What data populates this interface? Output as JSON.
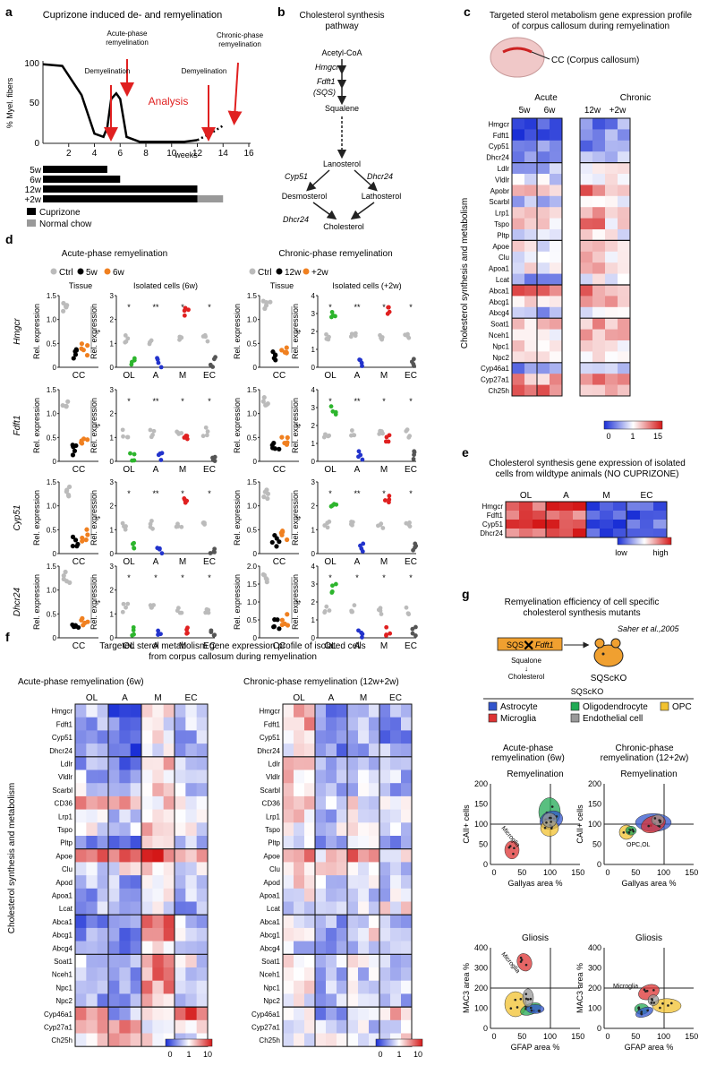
{
  "colors": {
    "cuprizone": "#000000",
    "normal_chow": "#999999",
    "arrow_red": "#e02020",
    "astrocyte": "#3355cc",
    "oligodendrocyte": "#22aa55",
    "opc": "#f2c230",
    "microglia": "#dd3333",
    "endothelial": "#999999",
    "ctrl": "#bbbbbb",
    "w5": "#000000",
    "w6": "#f08020",
    "oligo_green": "#2db52d",
    "astro_blue": "#2233cc",
    "micro_red": "#e02020"
  },
  "panel_a": {
    "letter": "a",
    "title": "Cuprizone induced de- and remyelination",
    "ylabel": "% Myel. fibers",
    "yticks": [
      "100",
      "50",
      "0"
    ],
    "xticks": [
      "2",
      "4",
      "6",
      "8",
      "10",
      "12",
      "14",
      "16"
    ],
    "xlabel": "weeks",
    "labels": {
      "demyel1": "Demyelination",
      "acute": "Acute-phase remyelination",
      "demyel2": "Demyelination",
      "chronic": "Chronic-phase remyelination",
      "analysis": "Analysis"
    },
    "bars": [
      {
        "label": "5w",
        "weeks": 5
      },
      {
        "label": "6w",
        "weeks": 6
      },
      {
        "label": "12w",
        "weeks": 12
      },
      {
        "label": "+2w",
        "weeks": 12,
        "extra": 2
      }
    ],
    "legend": [
      "Cuprizone",
      "Normal chow"
    ],
    "curve": [
      [
        0,
        98
      ],
      [
        1.5,
        96
      ],
      [
        3,
        60
      ],
      [
        4,
        12
      ],
      [
        4.7,
        8
      ],
      [
        5,
        20
      ],
      [
        5.3,
        55
      ],
      [
        5.7,
        62
      ],
      [
        6,
        55
      ],
      [
        6.5,
        8
      ],
      [
        7.5,
        2
      ],
      [
        9,
        2
      ],
      [
        11,
        2
      ],
      [
        12,
        4
      ],
      [
        13,
        12
      ],
      [
        14,
        22
      ]
    ]
  },
  "panel_b": {
    "letter": "b",
    "title": "Cholesterol synthesis pathway",
    "nodes": {
      "acetyl": "Acetyl-CoA",
      "hmgcr": "Hmgcr",
      "fdft1": "Fdft1",
      "sqs": "(SQS)",
      "squalene": "Squalene",
      "lanosterol": "Lanosterol",
      "cyp51": "Cyp51",
      "dhcr24a": "Dhcr24",
      "desmosterol": "Desmosterol",
      "lathosterol": "Lathosterol",
      "dhcr24b": "Dhcr24",
      "cholesterol": "Cholesterol"
    }
  },
  "panel_c": {
    "letter": "c",
    "title": "Targeted sterol metabolism gene expression profile of corpus callosum during remyelination",
    "brain_label": "CC (Corpus callosum)",
    "acute": "Acute",
    "chronic": "Chronic",
    "cols": [
      "5w",
      "6w",
      "12w",
      "+2w"
    ],
    "ylabel": "Cholesterol synthesis and metabolism",
    "genes": [
      "Hmgcr",
      "Fdft1",
      "Cyp51",
      "Dhcr24",
      "Ldlr",
      "Vldlr",
      "Apobr",
      "Scarbl",
      "Lrp1",
      "Tspo",
      "Pltp",
      "Apoe",
      "Clu",
      "Apoa1",
      "Lcat",
      "Abca1",
      "Abcg1",
      "Abcg4",
      "Soat1",
      "Nceh1",
      "Npc1",
      "Npc2",
      "Cyp46a1",
      "Cyp27a1",
      "Ch25h"
    ],
    "groups": [
      4,
      7,
      4,
      3,
      4,
      3
    ],
    "scale": [
      "0",
      "1",
      "15"
    ],
    "heat": [
      [
        0.1,
        0.15,
        0.2,
        0.25
      ],
      [
        0.1,
        0.1,
        0.25,
        0.3
      ],
      [
        0.15,
        0.2,
        0.2,
        0.35
      ],
      [
        0.2,
        0.15,
        0.3,
        0.4
      ],
      [
        0.35,
        0.3,
        0.45,
        0.5
      ],
      [
        0.45,
        0.4,
        0.55,
        0.6
      ],
      [
        0.7,
        0.6,
        0.8,
        0.7
      ],
      [
        0.35,
        0.3,
        0.5,
        0.45
      ],
      [
        0.55,
        0.5,
        0.7,
        0.6
      ],
      [
        0.7,
        0.6,
        0.75,
        0.55
      ],
      [
        0.45,
        0.5,
        0.6,
        0.5
      ],
      [
        0.55,
        0.5,
        0.7,
        0.6
      ],
      [
        0.4,
        0.45,
        0.6,
        0.55
      ],
      [
        0.5,
        0.45,
        0.65,
        0.5
      ],
      [
        0.25,
        0.3,
        0.45,
        0.4
      ],
      [
        0.9,
        0.8,
        0.75,
        0.7
      ],
      [
        0.6,
        0.55,
        0.7,
        0.65
      ],
      [
        0.3,
        0.3,
        0.45,
        0.5
      ],
      [
        0.65,
        0.6,
        0.7,
        0.65
      ],
      [
        0.6,
        0.55,
        0.7,
        0.6
      ],
      [
        0.55,
        0.6,
        0.65,
        0.55
      ],
      [
        0.55,
        0.5,
        0.6,
        0.55
      ],
      [
        0.2,
        0.25,
        0.35,
        0.3
      ],
      [
        0.7,
        0.65,
        0.75,
        0.7
      ],
      [
        0.85,
        0.8,
        0.7,
        0.75
      ]
    ]
  },
  "panel_d": {
    "letter": "d",
    "acute_title": "Acute-phase remyelination",
    "chronic_title": "Chronic-phase remyelination",
    "acute_legend": [
      "Ctrl",
      "5w",
      "6w"
    ],
    "chronic_legend": [
      "Ctrl",
      "12w",
      "+2w"
    ],
    "tissue": "Tissue",
    "isolated_acute": "Isolated cells (6w)",
    "isolated_chronic": "Isolated cells (+2w)",
    "ylabel": "Rel. expression",
    "tissue_x": "CC",
    "cells": [
      "OL",
      "A",
      "M",
      "EC"
    ],
    "genes": [
      "Hmgcr",
      "Fdft1",
      "Cyp51",
      "Dhcr24"
    ],
    "yticks_tissue": [
      "1.5",
      "1.0",
      "0.5",
      "0"
    ],
    "yticks_cells": [
      "3",
      "2",
      "1",
      "0"
    ],
    "yticks_cells_chronic": [
      "4",
      "3",
      "2",
      "1",
      "0"
    ],
    "yticks_chronic_dhcr24_tissue": [
      "2.0",
      "1.5",
      "1.0",
      "0.5",
      "0"
    ],
    "stars": [
      "*",
      "**",
      "***"
    ]
  },
  "panel_e": {
    "letter": "e",
    "title": "Cholesterol synthesis gene expression of isolated cells from wildtype animals (NO CUPRIZONE)",
    "cols": [
      "OL",
      "A",
      "M",
      "EC"
    ],
    "genes": [
      "Hmgcr",
      "Fdft1",
      "Cyp51",
      "Dhcr24"
    ],
    "scale": [
      "low",
      "high"
    ],
    "heat": [
      [
        0.8,
        0.9,
        0.1,
        0.2
      ],
      [
        0.85,
        0.8,
        0.1,
        0.15
      ],
      [
        0.9,
        0.85,
        0.1,
        0.2
      ],
      [
        0.8,
        0.9,
        0.1,
        0.25
      ]
    ]
  },
  "panel_f": {
    "letter": "f",
    "title": "Targeted sterol metabolism gene expression profile of isolated cells from corpus callosum during remyelination",
    "acute_title": "Acute-phase remyelination (6w)",
    "chronic_title": "Chronic-phase remyelination (12w+2w)",
    "cols": [
      "OL",
      "A",
      "M",
      "EC"
    ],
    "ylabel": "Cholesterol synthesis and metabolism",
    "genes": [
      "Hmgcr",
      "Fdft1",
      "Cyp51",
      "Dhcr24",
      "Ldlr",
      "Vldlr",
      "Scarbl",
      "CD36",
      "Lrp1",
      "Tspo",
      "Pltp",
      "Apoe",
      "Clu",
      "Apod",
      "Apoa1",
      "Lcat",
      "Abca1",
      "Abcg1",
      "Abcg4",
      "Soat1",
      "Nceh1",
      "Npc1",
      "Npc2",
      "Cyp46a1",
      "Cyp27a1",
      "Ch25h"
    ],
    "groups": [
      4,
      7,
      5,
      3,
      4,
      3
    ],
    "scale": [
      "0",
      "1",
      "10"
    ]
  },
  "panel_g": {
    "letter": "g",
    "title": "Remyelination efficiency of cell specific cholesterol synthesis mutants",
    "citation": "Saher et al.,2005",
    "sqs": "SQS",
    "fdft1": "Fdft1",
    "squalone": "Squalone",
    "cholesterol": "Cholesterol",
    "mouse": "SQScKO",
    "legend_title": "SQScKO",
    "legend": [
      "Astrocyte",
      "Oligodendrocyte",
      "OPC",
      "Microglia",
      "Endothelial cell"
    ],
    "acute_title": "Acute-phase remyelination (6w)",
    "chronic_title": "Chronic-phase remyelination (12+2w)",
    "remyelination": "Remyelination",
    "gliosis": "Gliosis",
    "ylabel_top": "CAII+ cells",
    "xlabel_top": "Gallyas area %",
    "ylabel_bot": "MAC3 area %",
    "xlabel_bot": "GFAP area %",
    "yticks": [
      "200",
      "150",
      "100",
      "50",
      "0"
    ],
    "yticks_bot": [
      "400",
      "300",
      "200",
      "100",
      "0"
    ],
    "xticks": [
      "0",
      "50",
      "100",
      "150"
    ],
    "ann_microglia": "Microglia",
    "ann_opc": "OPC,OL"
  }
}
